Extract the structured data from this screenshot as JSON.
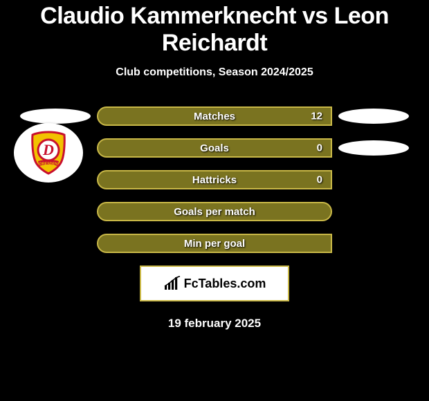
{
  "title": "Claudio Kammerknecht vs Leon Reichardt",
  "subtitle": "Club competitions, Season 2024/2025",
  "colors": {
    "background": "#000000",
    "pill_border": "#c9b847",
    "pill_fill": "#7a7320",
    "text": "#ffffff",
    "oval": "#ffffff",
    "club_red": "#c8102e",
    "club_yellow": "#f2c200",
    "brand_bg": "#ffffff",
    "brand_text": "#000000"
  },
  "rows": [
    {
      "label": "Matches",
      "value": "12",
      "left_oval": true,
      "right_oval": true,
      "square_right": true
    },
    {
      "label": "Goals",
      "value": "0",
      "left_oval": false,
      "right_oval": true,
      "square_right": true
    },
    {
      "label": "Hattricks",
      "value": "0",
      "left_oval": false,
      "right_oval": false,
      "square_right": true
    },
    {
      "label": "Goals per match",
      "value": "",
      "left_oval": false,
      "right_oval": false,
      "square_right": false
    },
    {
      "label": "Min per goal",
      "value": "",
      "left_oval": false,
      "right_oval": false,
      "square_right": true
    }
  ],
  "club": {
    "name": "Dynamo Dresden",
    "letter": "D",
    "banner": "DRESDEN"
  },
  "brand": {
    "text": "FcTables.com",
    "icon": "bar-chart-icon"
  },
  "date": "19 february 2025"
}
